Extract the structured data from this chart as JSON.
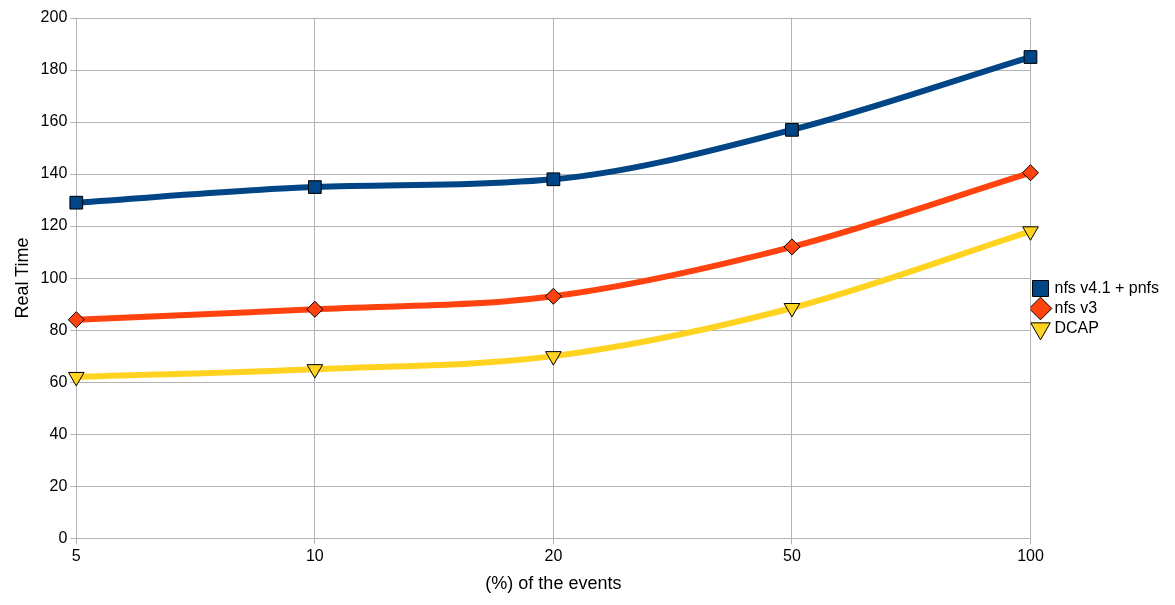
{
  "chart_data": {
    "type": "line",
    "xlabel": "(%) of the events",
    "ylabel": "Real Time",
    "categories": [
      "5",
      "10",
      "20",
      "50",
      "100"
    ],
    "series": [
      {
        "name": "nfs v4.1 + pnfs",
        "color": "#004586",
        "marker": "square",
        "values": [
          129,
          135,
          138,
          157,
          185
        ]
      },
      {
        "name": "nfs v3",
        "color": "#ff420e",
        "marker": "diamond",
        "values": [
          84,
          88,
          93,
          112,
          140.5
        ]
      },
      {
        "name": "DCAP",
        "color": "#ffd320",
        "marker": "triangle",
        "values": [
          62,
          65,
          70,
          88.5,
          118
        ]
      }
    ],
    "ylim": [
      0,
      200
    ],
    "yticks": [
      0,
      20,
      40,
      60,
      80,
      100,
      120,
      140,
      160,
      180,
      200
    ],
    "grid": true,
    "legend": "right"
  }
}
